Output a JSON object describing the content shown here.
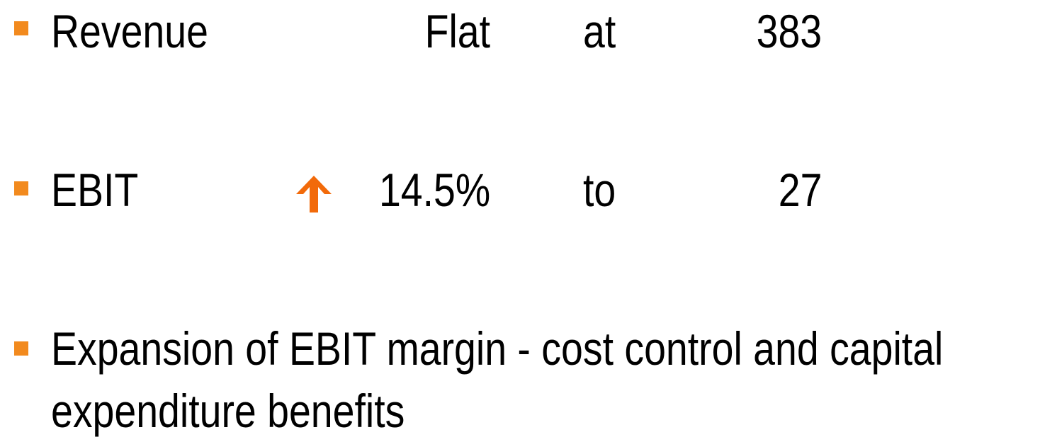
{
  "bullets": [
    {
      "label": "Revenue",
      "change": "Flat",
      "preposition": "at",
      "value": "383"
    },
    {
      "label": "EBIT",
      "change": "14.5%",
      "preposition": "to",
      "value": "27"
    },
    {
      "text": "Expansion of EBIT margin - cost control and capital expenditure benefits"
    }
  ]
}
